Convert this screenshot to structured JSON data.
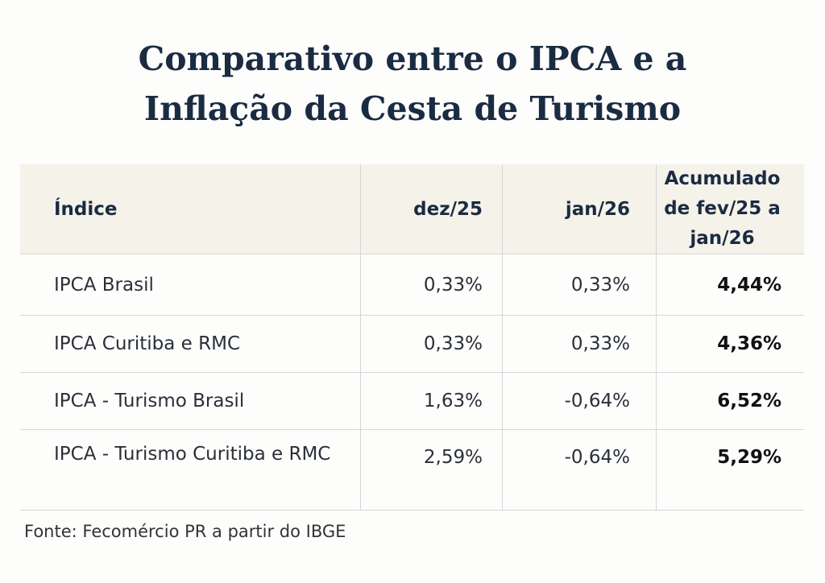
{
  "title": {
    "line1": "Comparativo entre o IPCA e a",
    "line2": "Inflação da Cesta de Turismo"
  },
  "table": {
    "headers": [
      "Índice",
      "dez/25",
      "jan/26",
      "Acumulado",
      "de fev/25 a jan/26"
    ],
    "rows": [
      [
        "IPCA Brasil",
        "0,33%",
        "0,33%",
        "4,44%"
      ],
      [
        "IPCA Curitiba e RMC",
        "0,33%",
        "0,33%",
        "4,36%"
      ],
      [
        "IPCA - Turismo Brasil",
        "1,63%",
        "-0,64%",
        "6,52%"
      ],
      [
        "IPCA - Turismo Curitiba e RMC",
        "2,59%",
        "-0,64%",
        "5,29%"
      ]
    ]
  },
  "source": "Fonte: Fecomércio PR a partir do IBGE",
  "colors": {
    "title": "#1a2b42",
    "header_bg": "#f5f2ea"
  }
}
